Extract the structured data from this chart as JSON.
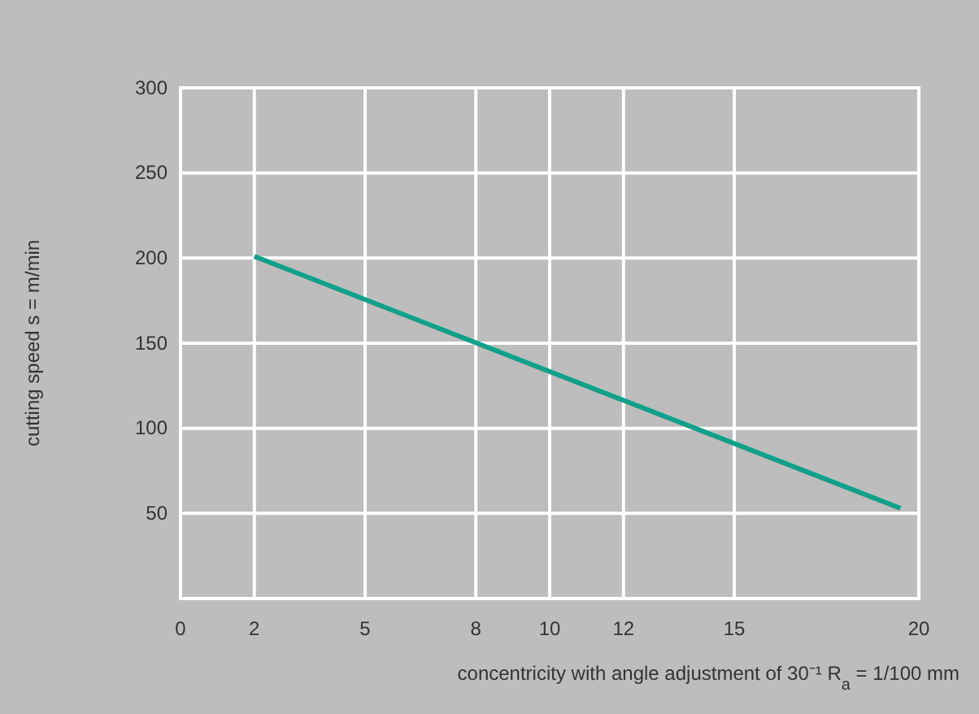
{
  "chart_data": {
    "type": "line",
    "xlabel": "concentricity with angle adjustment of 30⁻¹ R$_{a}$ = 1/100 mm",
    "ylabel": "cutting speed s = m/min",
    "series": [
      {
        "color": "#12a08a",
        "x": [
          2,
          19.5
        ],
        "values": [
          201,
          53
        ]
      }
    ],
    "xlim": [
      0,
      20
    ],
    "xticks": [
      0,
      2,
      5,
      8,
      10,
      12,
      15,
      20
    ],
    "ylim": [
      0,
      300
    ],
    "yticks": [
      50,
      100,
      150,
      200,
      250,
      300
    ],
    "grid": true,
    "marker": "none",
    "line_style": "solid"
  }
}
